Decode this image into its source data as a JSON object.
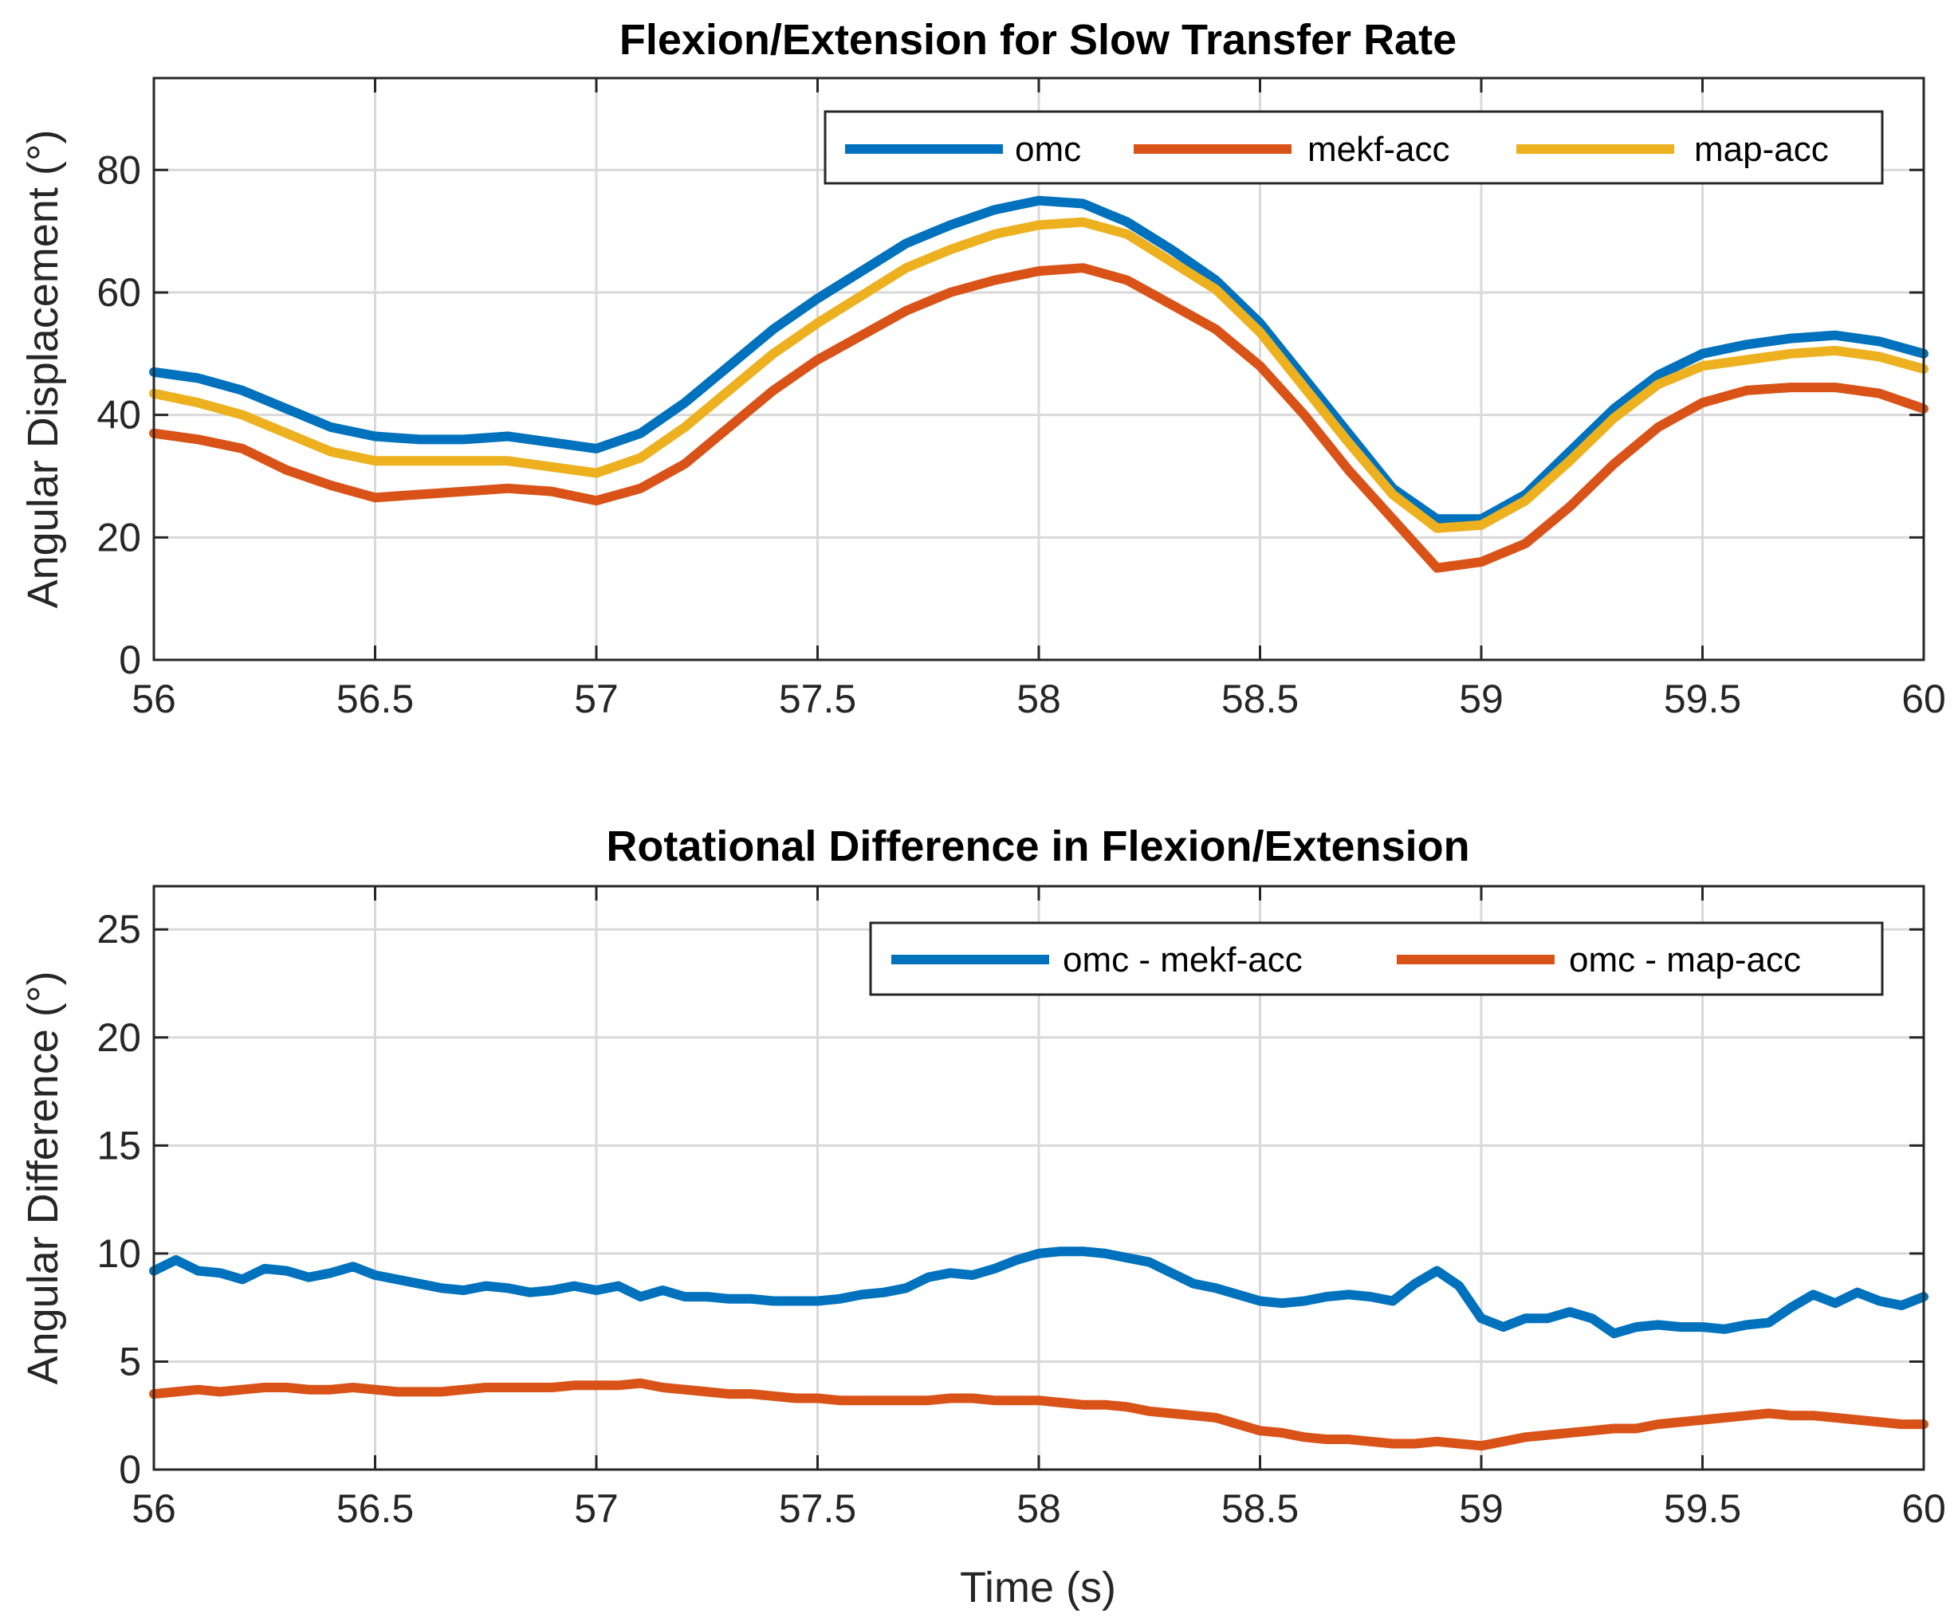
{
  "chart_data": [
    {
      "type": "line",
      "title": "Flexion/Extension for Slow Transfer Rate",
      "xlabel": "",
      "ylabel": "Angular Displacement (°)",
      "xlim": [
        56,
        60
      ],
      "ylim": [
        0,
        95
      ],
      "xticks": [
        56,
        56.5,
        57,
        57.5,
        58,
        58.5,
        59,
        59.5,
        60
      ],
      "xtick_labels": [
        "56",
        "56.5",
        "57",
        "57.5",
        "58",
        "58.5",
        "59",
        "59.5",
        "60"
      ],
      "yticks": [
        0,
        20,
        40,
        60,
        80
      ],
      "ytick_labels": [
        "0",
        "20",
        "40",
        "60",
        "80"
      ],
      "grid": true,
      "legend_position": "top-right",
      "x": [
        56.0,
        56.1,
        56.2,
        56.3,
        56.4,
        56.5,
        56.6,
        56.7,
        56.8,
        56.9,
        57.0,
        57.1,
        57.2,
        57.3,
        57.4,
        57.5,
        57.6,
        57.7,
        57.8,
        57.9,
        58.0,
        58.1,
        58.2,
        58.3,
        58.4,
        58.5,
        58.6,
        58.7,
        58.8,
        58.9,
        59.0,
        59.1,
        59.2,
        59.3,
        59.4,
        59.5,
        59.6,
        59.7,
        59.8,
        59.9,
        60.0
      ],
      "series": [
        {
          "name": "omc",
          "color": "#0072BD",
          "values": [
            47,
            46,
            44,
            41,
            38,
            36.5,
            36,
            36,
            36.5,
            35.5,
            34.5,
            37,
            42,
            48,
            54,
            59,
            63.5,
            68,
            71,
            73.5,
            75,
            74.5,
            71.5,
            67,
            62,
            55,
            46,
            37,
            28,
            23,
            23,
            27,
            34,
            41,
            46.5,
            50,
            51.5,
            52.5,
            53,
            52,
            50
          ]
        },
        {
          "name": "mekf-acc",
          "color": "#D95319",
          "values": [
            37,
            36,
            34.5,
            31,
            28.5,
            26.5,
            27,
            27.5,
            28,
            27.5,
            26,
            28,
            32,
            38,
            44,
            49,
            53,
            57,
            60,
            62,
            63.5,
            64,
            62,
            58,
            54,
            48,
            40,
            31,
            23,
            15,
            16,
            19,
            25,
            32,
            38,
            42,
            44,
            44.5,
            44.5,
            43.5,
            41
          ]
        },
        {
          "name": "map-acc",
          "color": "#EDB120",
          "values": [
            43.5,
            42,
            40,
            37,
            34,
            32.5,
            32.5,
            32.5,
            32.5,
            31.5,
            30.5,
            33,
            38,
            44,
            50,
            55,
            59.5,
            64,
            67,
            69.5,
            71,
            71.5,
            69.5,
            65,
            60.5,
            53.5,
            44.5,
            35.5,
            27,
            21.5,
            22,
            26,
            32.5,
            39.5,
            45,
            48,
            49,
            50,
            50.5,
            49.5,
            47.5
          ]
        }
      ]
    },
    {
      "type": "line",
      "title": "Rotational Difference in Flexion/Extension",
      "xlabel": "Time (s)",
      "ylabel": "Angular Difference (°)",
      "xlim": [
        56,
        60
      ],
      "ylim": [
        0,
        27
      ],
      "xticks": [
        56,
        56.5,
        57,
        57.5,
        58,
        58.5,
        59,
        59.5,
        60
      ],
      "xtick_labels": [
        "56",
        "56.5",
        "57",
        "57.5",
        "58",
        "58.5",
        "59",
        "59.5",
        "60"
      ],
      "yticks": [
        0,
        5,
        10,
        15,
        20,
        25
      ],
      "ytick_labels": [
        "0",
        "5",
        "10",
        "15",
        "20",
        "25"
      ],
      "grid": true,
      "legend_position": "top-right",
      "x": [
        56.0,
        56.05,
        56.1,
        56.15,
        56.2,
        56.25,
        56.3,
        56.35,
        56.4,
        56.45,
        56.5,
        56.55,
        56.6,
        56.65,
        56.7,
        56.75,
        56.8,
        56.85,
        56.9,
        56.95,
        57.0,
        57.05,
        57.1,
        57.15,
        57.2,
        57.25,
        57.3,
        57.35,
        57.4,
        57.45,
        57.5,
        57.55,
        57.6,
        57.65,
        57.7,
        57.75,
        57.8,
        57.85,
        57.9,
        57.95,
        58.0,
        58.05,
        58.1,
        58.15,
        58.2,
        58.25,
        58.3,
        58.35,
        58.4,
        58.45,
        58.5,
        58.55,
        58.6,
        58.65,
        58.7,
        58.75,
        58.8,
        58.85,
        58.9,
        58.95,
        59.0,
        59.05,
        59.1,
        59.15,
        59.2,
        59.25,
        59.3,
        59.35,
        59.4,
        59.45,
        59.5,
        59.55,
        59.6,
        59.65,
        59.7,
        59.75,
        59.8,
        59.85,
        59.9,
        59.95,
        60.0
      ],
      "series": [
        {
          "name": "omc - mekf-acc",
          "color": "#0072BD",
          "values": [
            9.2,
            9.7,
            9.2,
            9.1,
            8.8,
            9.3,
            9.2,
            8.9,
            9.1,
            9.4,
            9.0,
            8.8,
            8.6,
            8.4,
            8.3,
            8.5,
            8.4,
            8.2,
            8.3,
            8.5,
            8.3,
            8.5,
            8.0,
            8.3,
            8.0,
            8.0,
            7.9,
            7.9,
            7.8,
            7.8,
            7.8,
            7.9,
            8.1,
            8.2,
            8.4,
            8.9,
            9.1,
            9.0,
            9.3,
            9.7,
            10.0,
            10.1,
            10.1,
            10.0,
            9.8,
            9.6,
            9.1,
            8.6,
            8.4,
            8.1,
            7.8,
            7.7,
            7.8,
            8.0,
            8.1,
            8.0,
            7.8,
            8.6,
            9.2,
            8.5,
            7.0,
            6.6,
            7.0,
            7.0,
            7.3,
            7.0,
            6.3,
            6.6,
            6.7,
            6.6,
            6.6,
            6.5,
            6.7,
            6.8,
            7.5,
            8.1,
            7.7,
            8.2,
            7.8,
            7.6,
            8.0
          ]
        },
        {
          "name": "omc - map-acc",
          "color": "#D95319",
          "values": [
            3.5,
            3.6,
            3.7,
            3.6,
            3.7,
            3.8,
            3.8,
            3.7,
            3.7,
            3.8,
            3.7,
            3.6,
            3.6,
            3.6,
            3.7,
            3.8,
            3.8,
            3.8,
            3.8,
            3.9,
            3.9,
            3.9,
            4.0,
            3.8,
            3.7,
            3.6,
            3.5,
            3.5,
            3.4,
            3.3,
            3.3,
            3.2,
            3.2,
            3.2,
            3.2,
            3.2,
            3.3,
            3.3,
            3.2,
            3.2,
            3.2,
            3.1,
            3.0,
            3.0,
            2.9,
            2.7,
            2.6,
            2.5,
            2.4,
            2.1,
            1.8,
            1.7,
            1.5,
            1.4,
            1.4,
            1.3,
            1.2,
            1.2,
            1.3,
            1.2,
            1.1,
            1.3,
            1.5,
            1.6,
            1.7,
            1.8,
            1.9,
            1.9,
            2.1,
            2.2,
            2.3,
            2.4,
            2.5,
            2.6,
            2.5,
            2.5,
            2.4,
            2.3,
            2.2,
            2.1,
            2.1
          ]
        }
      ]
    }
  ]
}
